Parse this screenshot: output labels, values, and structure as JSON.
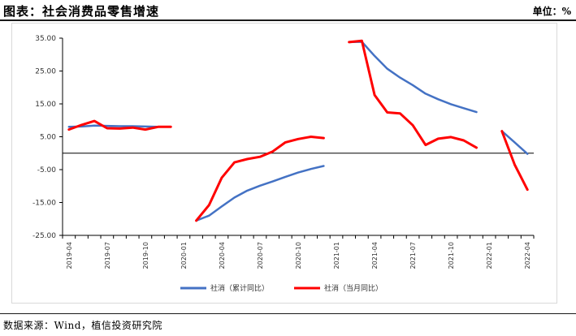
{
  "header": {
    "title": "图表：社会消费品零售增速",
    "unit": "单位：%"
  },
  "footer": {
    "source": "数据来源：Wind，植信投资研究院"
  },
  "colors": {
    "cumulative": "#4472c4",
    "monthly": "#ff0000",
    "axis": "#000000"
  },
  "chart_data": {
    "type": "line",
    "title": "",
    "xlabel": "",
    "ylabel": "",
    "ylim": [
      -25,
      35
    ],
    "yticks": [
      "35.00",
      "25.00",
      "15.00",
      "5.00",
      "-5.00",
      "-15.00",
      "-25.00"
    ],
    "x": [
      "2019-04",
      "2019-05",
      "2019-06",
      "2019-07",
      "2019-08",
      "2019-09",
      "2019-10",
      "2019-11",
      "2019-12",
      "2020-01",
      "2020-02",
      "2020-03",
      "2020-04",
      "2020-05",
      "2020-06",
      "2020-07",
      "2020-08",
      "2020-09",
      "2020-10",
      "2020-11",
      "2020-12",
      "2021-01",
      "2021-02",
      "2021-03",
      "2021-04",
      "2021-05",
      "2021-06",
      "2021-07",
      "2021-08",
      "2021-09",
      "2021-10",
      "2021-11",
      "2021-12",
      "2022-01",
      "2022-02",
      "2022-03",
      "2022-04"
    ],
    "xticklabels": [
      "2019-04",
      "2019-07",
      "2019-10",
      "2020-01",
      "2020-04",
      "2020-07",
      "2020-10",
      "2021-01",
      "2021-04",
      "2021-07",
      "2021-10",
      "2022-01",
      "2022-04"
    ],
    "series": [
      {
        "name": "社消（累计同比）",
        "color": "#4472c4",
        "values": [
          8.0,
          8.1,
          8.4,
          8.3,
          8.2,
          8.2,
          8.1,
          8.0,
          8.0,
          null,
          -20.5,
          -19.0,
          -16.2,
          -13.5,
          -11.4,
          -9.9,
          -8.6,
          -7.2,
          -5.9,
          -4.8,
          -3.9,
          null,
          33.8,
          33.9,
          29.6,
          25.7,
          23.0,
          20.7,
          18.1,
          16.4,
          14.9,
          13.7,
          12.5,
          null,
          6.7,
          3.3,
          -0.2
        ]
      },
      {
        "name": "社消（当月同比）",
        "color": "#ff0000",
        "values": [
          7.2,
          8.6,
          9.8,
          7.6,
          7.5,
          7.8,
          7.2,
          8.0,
          8.0,
          null,
          -20.5,
          -15.8,
          -7.5,
          -2.8,
          -1.8,
          -1.1,
          0.5,
          3.3,
          4.3,
          5.0,
          4.6,
          null,
          33.8,
          34.2,
          17.7,
          12.4,
          12.1,
          8.5,
          2.5,
          4.4,
          4.9,
          3.9,
          1.7,
          null,
          6.7,
          -3.5,
          -11.1
        ]
      }
    ],
    "legend_position": "bottom",
    "grid": false
  }
}
